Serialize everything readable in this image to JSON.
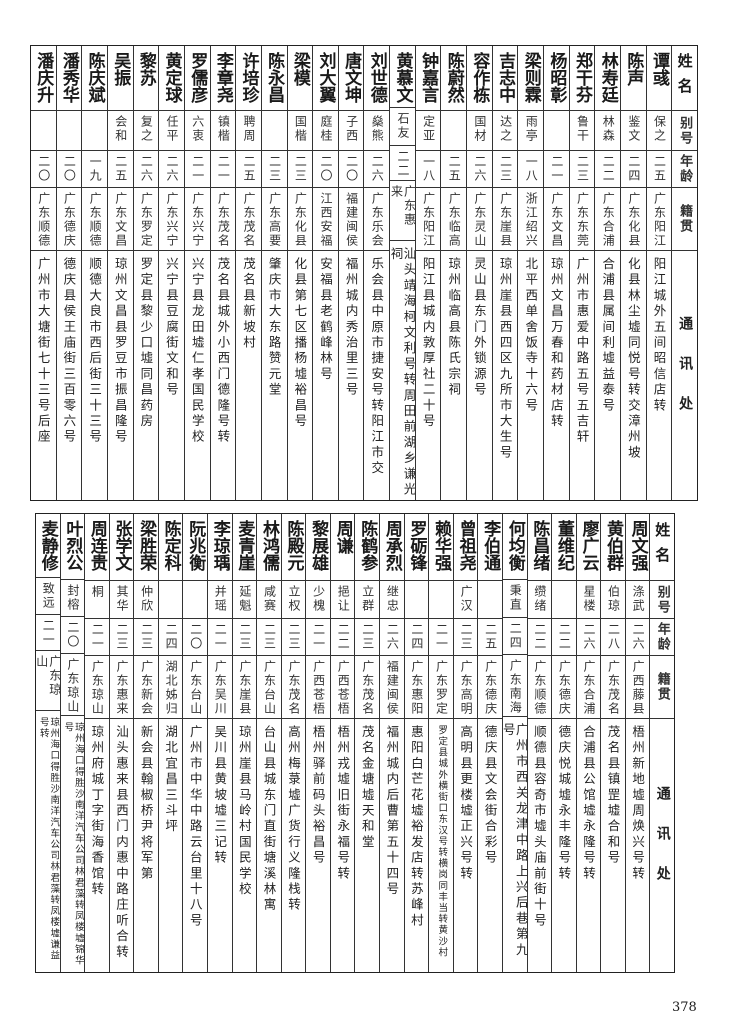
{
  "headers": {
    "name": "姓名",
    "alias": "别号",
    "age": "年龄",
    "origin": "籍贯",
    "address": "通讯处"
  },
  "top_table": [
    {
      "name": "谭彧",
      "alias": "保之",
      "age": "二五",
      "origin": "广东阳江",
      "address": "阳江城外五间昭信店转"
    },
    {
      "name": "陈声",
      "alias": "鉴文",
      "age": "二四",
      "origin": "广东化县",
      "address": "化县林尘墟同悦号转交漳州坡"
    },
    {
      "name": "林寿廷",
      "alias": "林森",
      "age": "二二",
      "origin": "广东合浦",
      "address": "合浦县属间利墟益泰号"
    },
    {
      "name": "郑干芬",
      "alias": "鲁干",
      "age": "二三",
      "origin": "广东东莞",
      "address": "广州市惠爱中路五号五吉轩"
    },
    {
      "name": "杨昭彰",
      "alias": "",
      "age": "二一",
      "origin": "广东文昌",
      "address": "琼州文昌万春和药材店转"
    },
    {
      "name": "梁则霖",
      "alias": "雨亭",
      "age": "一八",
      "origin": "浙江绍兴",
      "address": "北平西单舍饭寺十六号"
    },
    {
      "name": "吉志中",
      "alias": "达之",
      "age": "二三",
      "origin": "广东崖县",
      "address": "琼州崖县西四区九所市大生号"
    },
    {
      "name": "容作栋",
      "alias": "国材",
      "age": "二六",
      "origin": "广东灵山",
      "address": "灵山县东门外锁源号"
    },
    {
      "name": "陈蔚然",
      "alias": "",
      "age": "二五",
      "origin": "广东临高",
      "address": "琼州临高县陈氏宗祠"
    },
    {
      "name": "钟嘉言",
      "alias": "定亚",
      "age": "一八",
      "origin": "广东阳江",
      "address": "阳江县城内敦厚社二十号"
    },
    {
      "name": "黄慕文",
      "alias": "石友",
      "age": "二二",
      "origin": "广东惠来",
      "address": "汕头靖海柯文利号转周田前湖乡谦光祠"
    },
    {
      "name": "刘世德",
      "alias": "燊熊",
      "age": "二六",
      "origin": "广东乐会",
      "address": "乐会县中原市捷安号转阳江市交"
    },
    {
      "name": "唐文坤",
      "alias": "子西",
      "age": "二〇",
      "origin": "福建闽侯",
      "address": "福州城内秀治里三号"
    },
    {
      "name": "刘大翼",
      "alias": "庭桂",
      "age": "二〇",
      "origin": "江西安福",
      "address": "安福县老鹤峰林号"
    },
    {
      "name": "梁模",
      "alias": "国楷",
      "age": "二三",
      "origin": "广东化县",
      "address": "化县第七区播杨墟裕昌号"
    },
    {
      "name": "陈永昌",
      "alias": "",
      "age": "二三",
      "origin": "广东高要",
      "address": "肇庆市大东路赞元堂"
    },
    {
      "name": "许培珍",
      "alias": "聘周",
      "age": "二五",
      "origin": "广东茂名",
      "address": "茂名县新坡村"
    },
    {
      "name": "李章尧",
      "alias": "镇楷",
      "age": "二一",
      "origin": "广东茂名",
      "address": "茂名县城外小西门德隆号转"
    },
    {
      "name": "罗儒彦",
      "alias": "六衷",
      "age": "二一",
      "origin": "广东兴宁",
      "address": "兴宁县龙田墟仁孝国民学校"
    },
    {
      "name": "黄定球",
      "alias": "任平",
      "age": "二六",
      "origin": "广东兴宁",
      "address": "兴宁县豆腐街文和号"
    },
    {
      "name": "黎苏",
      "alias": "复之",
      "age": "二六",
      "origin": "广东罗定",
      "address": "罗定县黎少口墟同昌药房"
    },
    {
      "name": "吴振",
      "alias": "会和",
      "age": "二五",
      "origin": "广东文昌",
      "address": "琼州文昌县罗豆市振昌隆号"
    },
    {
      "name": "陈庆斌",
      "alias": "",
      "age": "一九",
      "origin": "广东顺德",
      "address": "顺德大良市西后街三十三号"
    },
    {
      "name": "潘秀华",
      "alias": "",
      "age": "二〇",
      "origin": "广东德庆",
      "address": "德庆县侯王庙街三百零六号"
    },
    {
      "name": "潘庆升",
      "alias": "",
      "age": "二〇",
      "origin": "广东顺德",
      "address": "广州市大塘街七十三号后座"
    }
  ],
  "bottom_table": [
    {
      "name": "周文强",
      "alias": "涤武",
      "age": "二六",
      "origin": "广西藤县",
      "address": "梧州新地墟周焕兴号转"
    },
    {
      "name": "黄伯群",
      "alias": "伯琼",
      "age": "二八",
      "origin": "广东茂名",
      "address": "茂名县镇罡墟合和号"
    },
    {
      "name": "廖广云",
      "alias": "星楼",
      "age": "二六",
      "origin": "广东合浦",
      "address": "合浦县公馆墟永隆号转"
    },
    {
      "name": "董维纪",
      "alias": "",
      "age": "二二",
      "origin": "广东德庆",
      "address": "德庆悦城墟永丰隆号转"
    },
    {
      "name": "陈昌绪",
      "alias": "缵绪",
      "age": "二二",
      "origin": "广东顺德",
      "address": "顺德县容奇市墟头庙前街十号"
    },
    {
      "name": "何均衡",
      "alias": "秉直",
      "age": "二四",
      "origin": "广东南海",
      "address": "广州市西关龙津中路上兴后巷第九号"
    },
    {
      "name": "李伯通",
      "alias": "",
      "age": "二五",
      "origin": "广东德庆",
      "address": "德庆县文会街合彩号"
    },
    {
      "name": "曾祖尧",
      "alias": "广汉",
      "age": "二三",
      "origin": "广东高明",
      "address": "高明县更楼墟正兴号转"
    },
    {
      "name": "赖华强",
      "alias": "",
      "age": "二一",
      "origin": "广东罗定",
      "address": "罗定县城外横街口东汉号转横岗同丰当转黄沙村",
      "dense": true
    },
    {
      "name": "罗砺锋",
      "alias": "",
      "age": "二四",
      "origin": "广东惠阳",
      "address": "惠阳白芒花墟裕发店转苏峰村"
    },
    {
      "name": "周承烈",
      "alias": "继忠",
      "age": "二六",
      "origin": "福建闽侯",
      "address": "福州城内后曹第五十四号"
    },
    {
      "name": "陈鹤参",
      "alias": "立群",
      "age": "二三",
      "origin": "广东茂名",
      "address": "茂名金塘墟天和堂"
    },
    {
      "name": "周谦",
      "alias": "挹让",
      "age": "二二",
      "origin": "广西苍梧",
      "address": "梧州戎墟旧街永福号转"
    },
    {
      "name": "黎展雄",
      "alias": "少槐",
      "age": "二一",
      "origin": "广西苍梧",
      "address": "梧州驿前码头裕昌号"
    },
    {
      "name": "陈殿元",
      "alias": "立权",
      "age": "二三",
      "origin": "广东茂名",
      "address": "高州梅菉墟广货行义隆栈转"
    },
    {
      "name": "林鸿儒",
      "alias": "咸赛",
      "age": "二三",
      "origin": "广东台山",
      "address": "台山县城东门直街塘溪林寓"
    },
    {
      "name": "麦青崖",
      "alias": "延魁",
      "age": "二三",
      "origin": "广东崖县",
      "address": "琼州崖县马岭村国民学校"
    },
    {
      "name": "李琼瑀",
      "alias": "并瑶",
      "age": "二一",
      "origin": "广东吴川",
      "address": "吴川县黄坡墟三记转"
    },
    {
      "name": "阮兆衡",
      "alias": "",
      "age": "二〇",
      "origin": "广东台山",
      "address": "广州市中华中路云台里十八号"
    },
    {
      "name": "陈定科",
      "alias": "",
      "age": "二四",
      "origin": "湖北姊归",
      "address": "湖北宜昌三斗坪"
    },
    {
      "name": "梁胜荣",
      "alias": "仲欣",
      "age": "二三",
      "origin": "广东新会",
      "address": "新会县翰椒桥尹将军第"
    },
    {
      "name": "张学文",
      "alias": "其华",
      "age": "二三",
      "origin": "广东惠来",
      "address": "汕头惠来县西门内惠中路庄听合转"
    },
    {
      "name": "周连贵",
      "alias": "桐",
      "age": "二一",
      "origin": "广东琼山",
      "address": "琼州府城丁字街海香馆转"
    },
    {
      "name": "叶烈公",
      "alias": "封榕",
      "age": "二〇",
      "origin": "广东琼山",
      "address": "琼州海口得胜沙南洋汽车公司林君藻转凤楼墟锦华号",
      "dense": true
    },
    {
      "name": "麦静修",
      "alias": "致远",
      "age": "二一",
      "origin": "广东琼山",
      "address": "琼州海口得胜沙南洋汽车公司林君藻转凤楼墟谦益号转",
      "dense": true
    }
  ],
  "page_number": "378"
}
